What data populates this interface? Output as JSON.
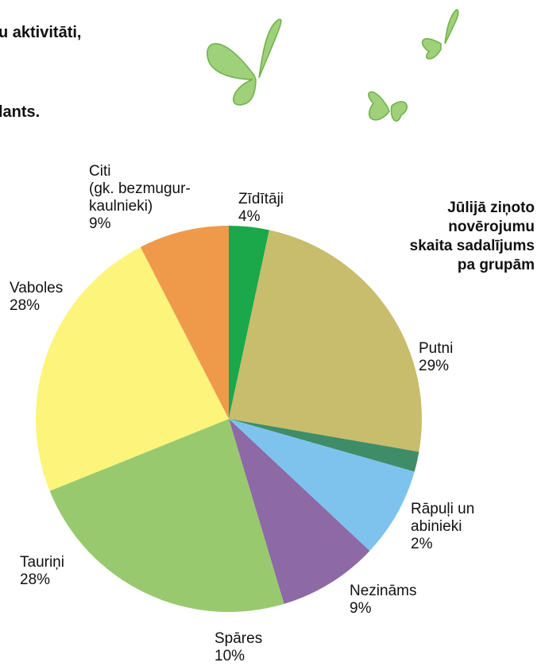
{
  "page_text": [
    "u aktivitāti,",
    "lants."
  ],
  "chart_data": {
    "type": "pie",
    "title": "Jūlijā ziņoto\nnovērojumu\nskaita sadalījums\npa grupām",
    "categories": [
      "Zīdītāji",
      "Putni",
      "Rāpuļi un\nabinieki",
      "Nezināms",
      "Spāres",
      "Tauriņi",
      "Vaboles",
      "Citi\n(gk. bezmugur-\nkaulnieki)"
    ],
    "values": [
      4,
      29,
      2,
      9,
      10,
      28,
      28,
      9
    ],
    "value_labels": [
      "4%",
      "29%",
      "2%",
      "9%",
      "10%",
      "28%",
      "28%",
      "9%"
    ],
    "colors": [
      "#1aa84a",
      "#c8bd6c",
      "#3e8d68",
      "#7dc3ee",
      "#8d69a5",
      "#99c96f",
      "#fdf47c",
      "#ef9a4b"
    ]
  }
}
